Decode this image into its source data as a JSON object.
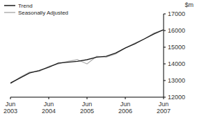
{
  "chart_data": {
    "type": "line",
    "y_label": "$m",
    "categories": [
      "Jun 2003",
      null,
      null,
      null,
      "Jun 2004",
      null,
      null,
      null,
      "Jun 2005",
      null,
      null,
      null,
      "Jun 2006",
      null,
      null,
      null,
      "Jun 2007"
    ],
    "series": [
      {
        "name": "Trend",
        "color": "#1a1a1a",
        "values": [
          12850,
          13150,
          13450,
          13600,
          13800,
          14050,
          14100,
          14150,
          14250,
          14400,
          14450,
          14650,
          14950,
          15200,
          15500,
          15800,
          16050
        ]
      },
      {
        "name": "Seasonally Adjusted",
        "color": "#b0b0b0",
        "values": [
          12800,
          13200,
          13500,
          13550,
          13850,
          14000,
          14150,
          14250,
          14000,
          14450,
          14400,
          14600,
          14950,
          15250,
          15500,
          15850,
          16050
        ]
      }
    ],
    "ylim": [
      12000,
      17000
    ],
    "yticks": [
      12000,
      13000,
      14000,
      15000,
      16000,
      17000
    ],
    "legend": "upper left",
    "grid": false
  }
}
